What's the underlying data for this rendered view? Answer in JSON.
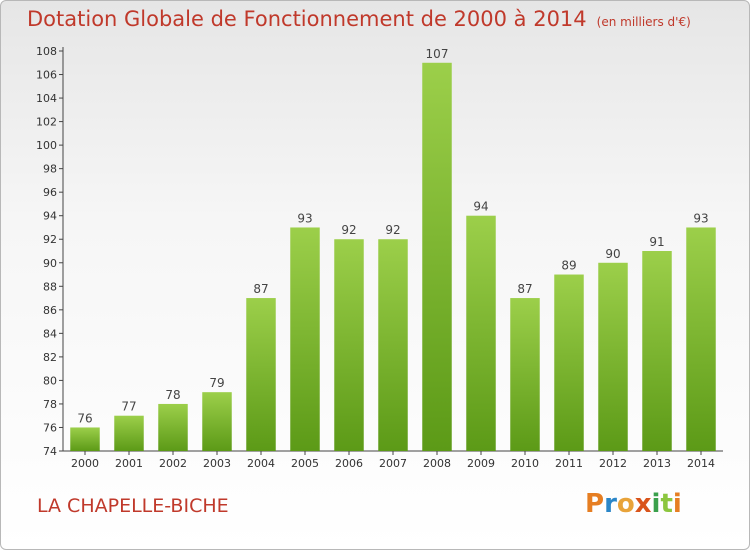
{
  "title": "Dotation Globale de Fonctionnement de 2000 à 2014",
  "subtitle": "(en milliers d'€)",
  "place": "LA CHAPELLE-BICHE",
  "logo": "Proxiti",
  "colors": {
    "bar_top": "#9ccf4a",
    "bar_bottom": "#5c9a17",
    "text": "#c0392b"
  },
  "chart_data": {
    "type": "bar",
    "title": "Dotation Globale de Fonctionnement de 2000 à 2014",
    "subtitle": "(en milliers d'€)",
    "xlabel": "",
    "ylabel": "",
    "categories": [
      "2000",
      "2001",
      "2002",
      "2003",
      "2004",
      "2005",
      "2006",
      "2007",
      "2008",
      "2009",
      "2010",
      "2011",
      "2012",
      "2013",
      "2014"
    ],
    "values": [
      76,
      77,
      78,
      79,
      87,
      93,
      92,
      92,
      107,
      94,
      87,
      89,
      90,
      91,
      93
    ],
    "ylim": [
      74,
      108
    ],
    "yticks": [
      74,
      76,
      78,
      80,
      82,
      84,
      86,
      88,
      90,
      92,
      94,
      96,
      98,
      100,
      102,
      104,
      106,
      108
    ],
    "grid": false
  }
}
